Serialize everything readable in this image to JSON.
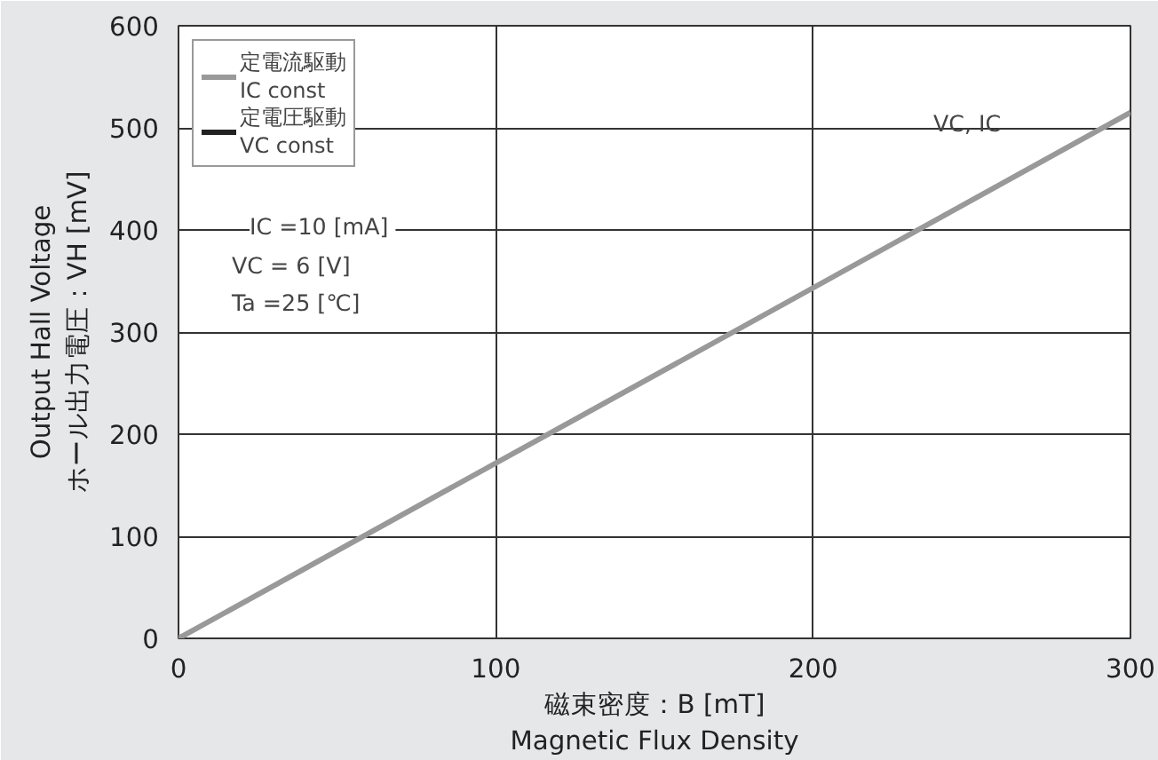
{
  "chart_data": {
    "type": "line",
    "x": [
      0,
      300
    ],
    "series": [
      {
        "name": "定電流駆動\nIC const",
        "color": "#999999",
        "values": [
          0,
          515
        ]
      },
      {
        "name": "定電圧駆動\nVC const",
        "color": "#222222",
        "values": [
          null,
          null
        ]
      }
    ],
    "xlabel": "磁束密度：B [mT]\nMagnetic Flux Density",
    "ylabel": "Output Hall Voltage\nホール出力電圧：VH [mV]",
    "xlim": [
      0,
      300
    ],
    "ylim": [
      0,
      600
    ],
    "xticks": [
      0,
      100,
      200,
      300
    ],
    "yticks": [
      0,
      100,
      200,
      300,
      400,
      500,
      600
    ],
    "grid": true,
    "legend": "top left",
    "annotations": [
      "IC  =10 [mA]",
      "VC  = 6  [V]",
      "Ta  =25 [℃]",
      "VC, IC"
    ]
  }
}
